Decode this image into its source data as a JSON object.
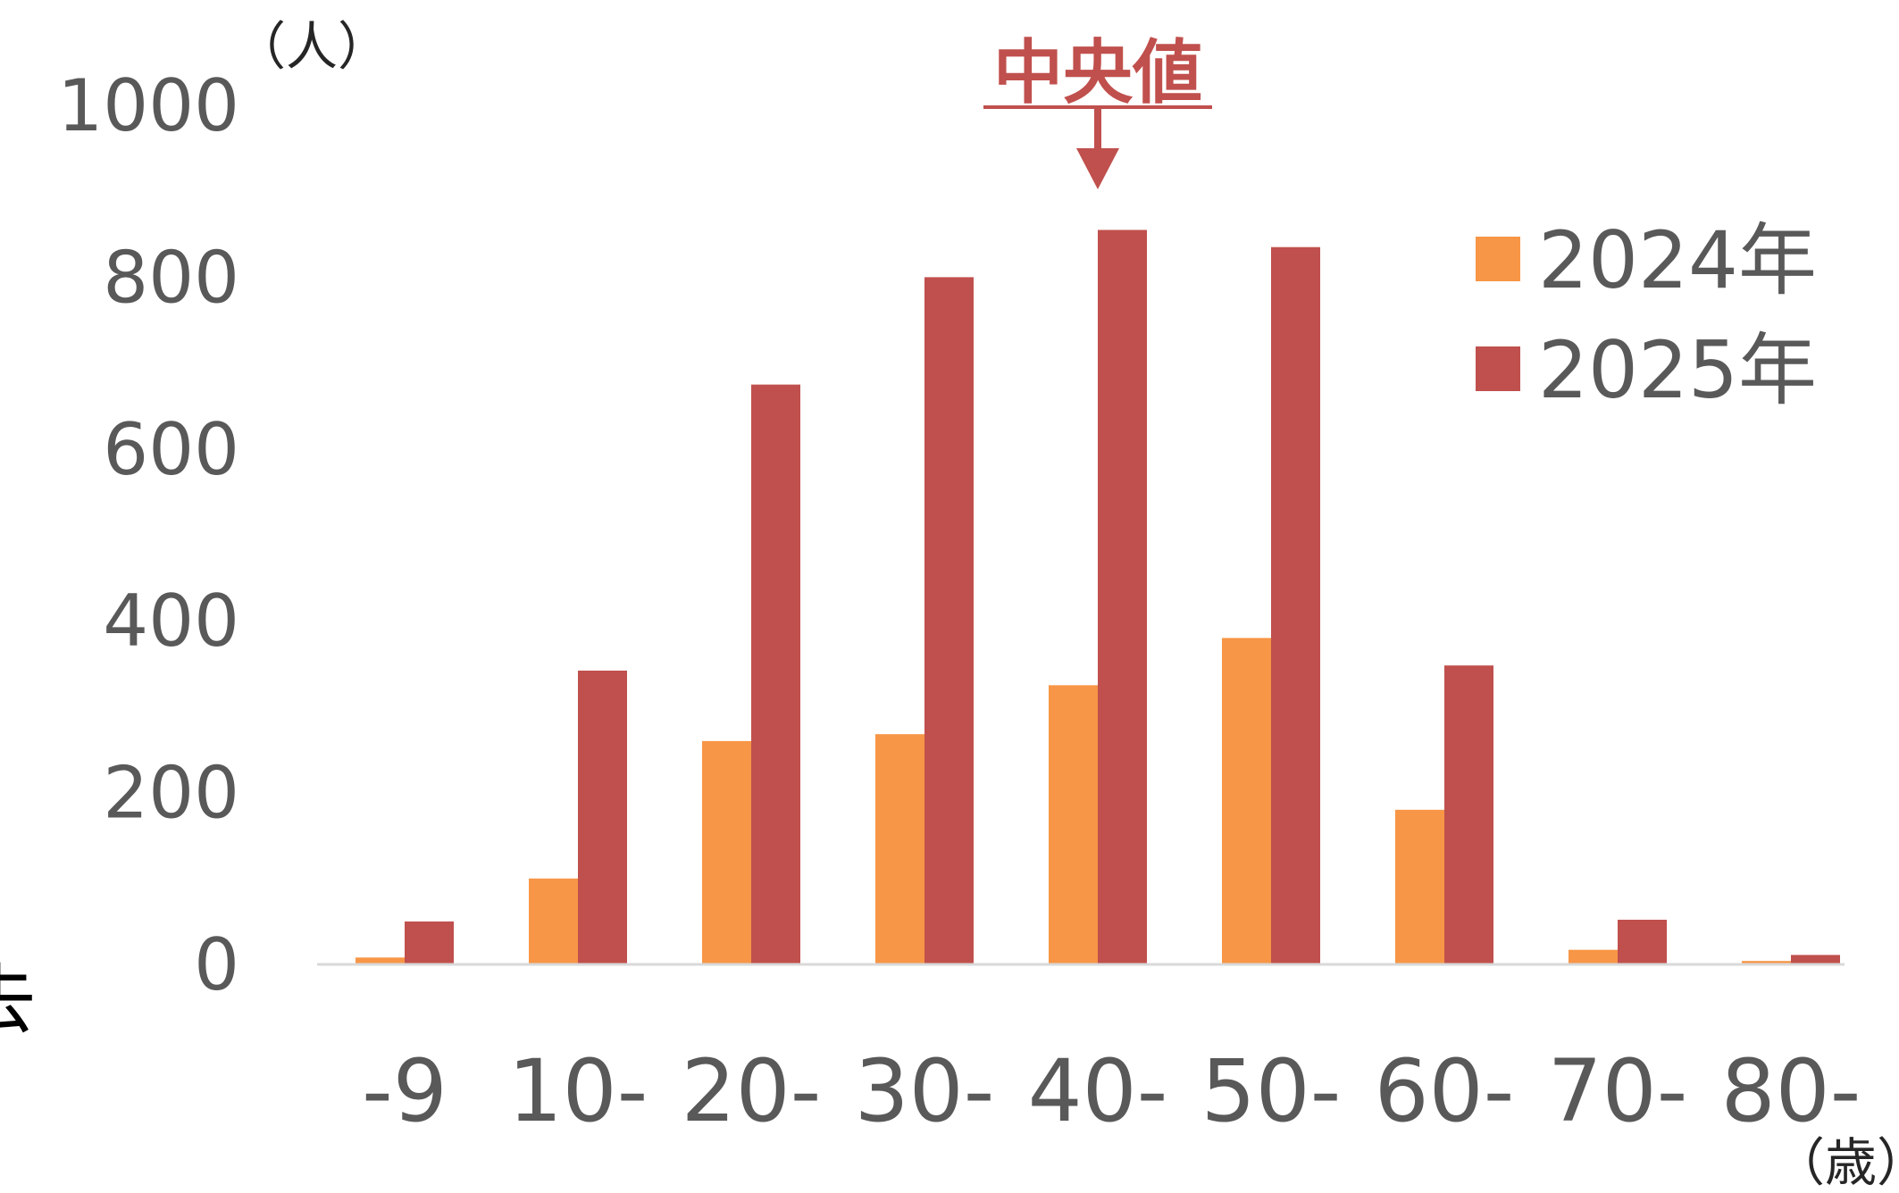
{
  "chart_data": {
    "type": "bar",
    "categories": [
      "-9",
      "10-",
      "20-",
      "30-",
      "40-",
      "50-",
      "60-",
      "70-",
      "80-"
    ],
    "series": [
      {
        "name": "2024年",
        "color": "#f79646",
        "values": [
          8,
          100,
          260,
          268,
          325,
          380,
          180,
          17,
          4
        ]
      },
      {
        "name": "2025年",
        "color": "#c0504d",
        "values": [
          50,
          342,
          675,
          800,
          855,
          835,
          348,
          52,
          11
        ]
      }
    ],
    "y_ticks": [
      "0",
      "200",
      "400",
      "600",
      "800",
      "1000"
    ],
    "ylim": [
      0,
      1000
    ],
    "y_unit": "（人）",
    "x_unit": "（歳）",
    "legend_position": "top-right",
    "grid": false,
    "annotation": {
      "label": "中央値",
      "category": "40-",
      "color": "#c0504d"
    },
    "edge_text": "去"
  }
}
